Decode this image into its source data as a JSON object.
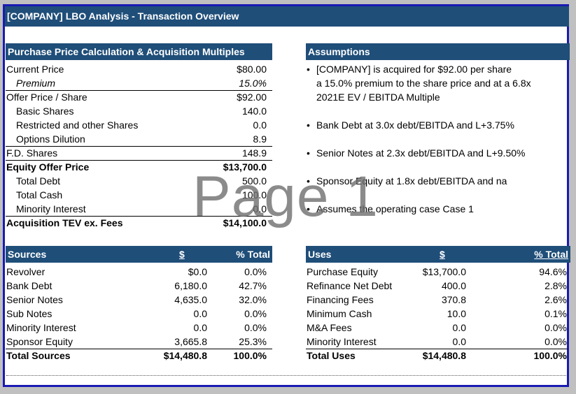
{
  "title": "[COMPANY] LBO Analysis - Transaction Overview",
  "purchase": {
    "header": "Purchase Price Calculation & Acquisition Multiples",
    "rows": [
      {
        "label": "Current Price",
        "value": "$80.00"
      },
      {
        "label": "Premium",
        "value": "15.0%"
      },
      {
        "label": "Offer Price / Share",
        "value": "$92.00"
      },
      {
        "label": "Basic Shares",
        "value": "140.0"
      },
      {
        "label": "Restricted and other Shares",
        "value": "0.0"
      },
      {
        "label": "Options Dilution",
        "value": "8.9"
      },
      {
        "label": "F.D. Shares",
        "value": "148.9"
      },
      {
        "label": "Equity Offer Price",
        "value": "$13,700.0"
      },
      {
        "label": "Total Debt",
        "value": "500.0"
      },
      {
        "label": "Total Cash",
        "value": "100.0"
      },
      {
        "label": "Minority Interest",
        "value": "0.0"
      },
      {
        "label": "Acquisition TEV ex. Fees",
        "value": "$14,100.0"
      }
    ]
  },
  "assumptions": {
    "header": "Assumptions",
    "bullet_char": "•",
    "items": [
      {
        "lines": [
          "[COMPANY] is acquired for $92.00 per share",
          "a 15.0% premium to the share price and at a 6.8x",
          "2021E EV / EBITDA Multiple"
        ]
      },
      {
        "lines": [
          "Bank Debt at 3.0x debt/EBITDA and L+3.75%"
        ]
      },
      {
        "lines": [
          "Senior Notes at 2.3x debt/EBITDA and L+9.50%"
        ]
      },
      {
        "lines": [
          "Sponsor Equity at 1.8x debt/EBITDA and na"
        ]
      },
      {
        "lines": [
          "Assumes the operating case Case 1"
        ]
      }
    ]
  },
  "sources": {
    "header": "Sources",
    "col_dollar": "$",
    "col_pct": "% Total",
    "rows": [
      {
        "label": "Revolver",
        "amount": "$0.0",
        "pct": "0.0%"
      },
      {
        "label": "Bank Debt",
        "amount": "6,180.0",
        "pct": "42.7%"
      },
      {
        "label": "Senior Notes",
        "amount": "4,635.0",
        "pct": "32.0%"
      },
      {
        "label": "Sub Notes",
        "amount": "0.0",
        "pct": "0.0%"
      },
      {
        "label": "Minority Interest",
        "amount": "0.0",
        "pct": "0.0%"
      },
      {
        "label": "Sponsor Equity",
        "amount": "3,665.8",
        "pct": "25.3%"
      }
    ],
    "total": {
      "label": "Total Sources",
      "amount": "$14,480.8",
      "pct": "100.0%"
    }
  },
  "uses": {
    "header": "Uses",
    "col_dollar": "$",
    "col_pct": "% Total",
    "rows": [
      {
        "label": "Purchase Equity",
        "amount": "$13,700.0",
        "pct": "94.6%"
      },
      {
        "label": "Refinance Net Debt",
        "amount": "400.0",
        "pct": "2.8%"
      },
      {
        "label": "Financing Fees",
        "amount": "370.8",
        "pct": "2.6%"
      },
      {
        "label": "Minimum Cash",
        "amount": "10.0",
        "pct": "0.1%"
      },
      {
        "label": "M&A Fees",
        "amount": "0.0",
        "pct": "0.0%"
      },
      {
        "label": "Minority Interest",
        "amount": "0.0",
        "pct": "0.0%"
      }
    ],
    "total": {
      "label": "Total Uses",
      "amount": "$14,480.8",
      "pct": "100.0%"
    }
  },
  "watermark": "Page 1",
  "colors": {
    "header_bg": "#1f4e79",
    "frame": "#1a1ab4"
  }
}
